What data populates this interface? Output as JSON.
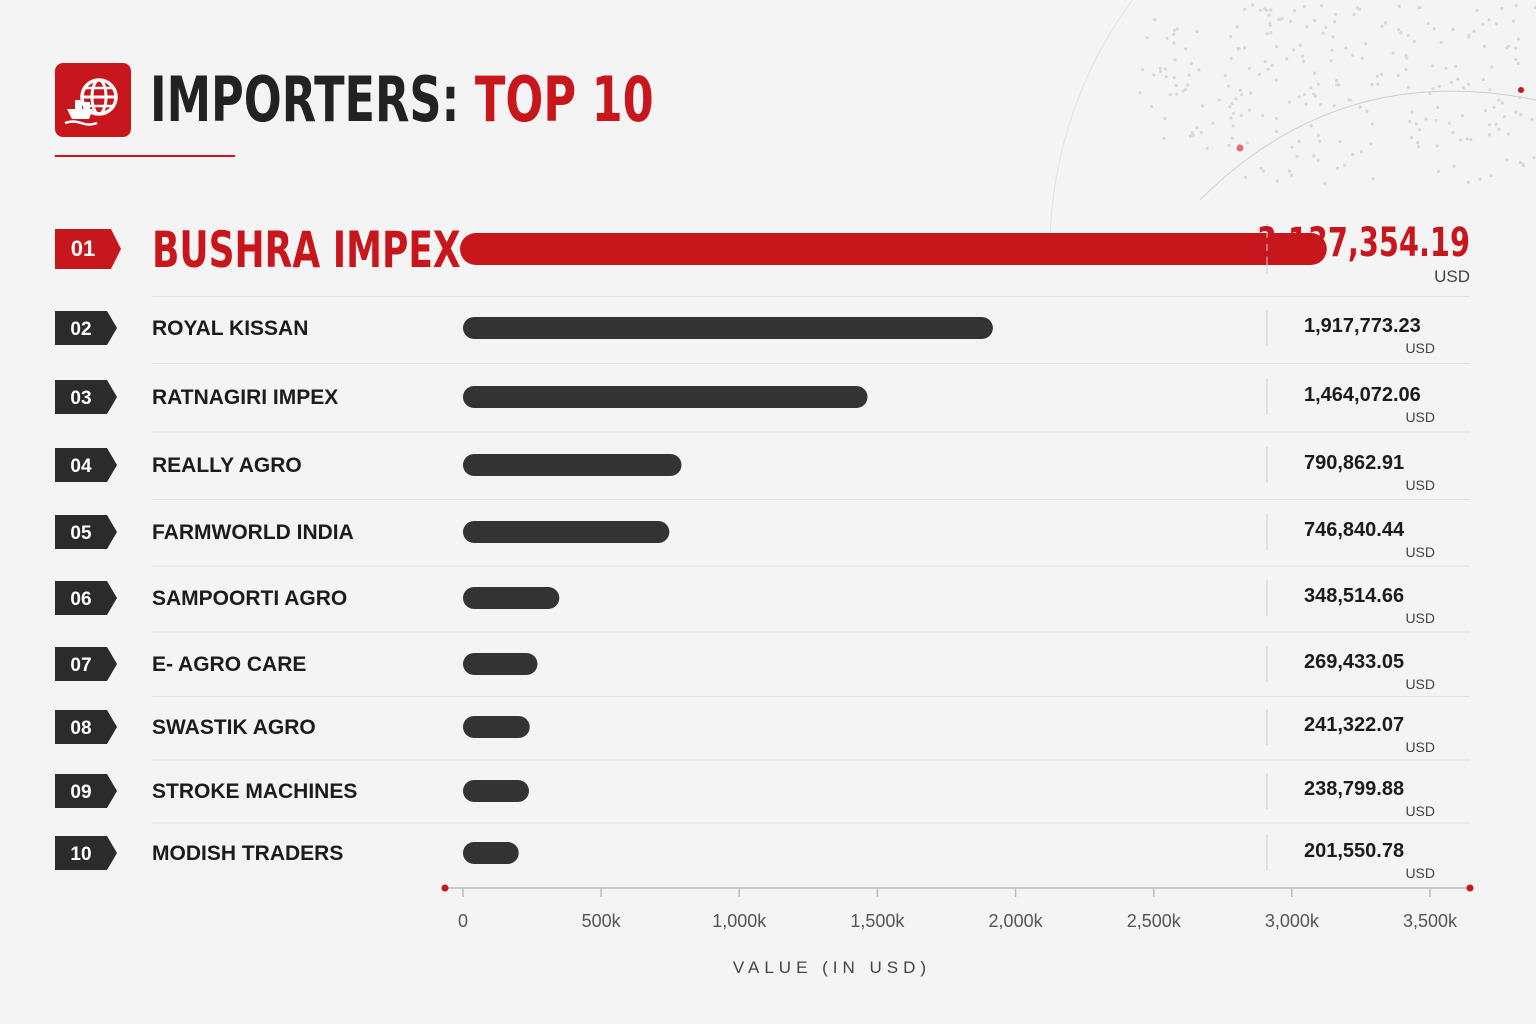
{
  "header": {
    "title_main": "IMPORTERS:",
    "title_accent": "TOP 10",
    "icon": "globe-ship-icon"
  },
  "colors": {
    "accent": "#c8161d",
    "bar_dark": "#333333",
    "rank_badge": "#2b2b2b",
    "background": "#f4f4f4"
  },
  "chart_data": {
    "type": "bar",
    "orientation": "horizontal",
    "unit_label": "USD",
    "xlabel": "VALUE (IN USD)",
    "xlim": [
      0,
      3500000
    ],
    "tick_labels": [
      "0",
      "500k",
      "1,000k",
      "1,500k",
      "2,000k",
      "2,500k",
      "3,000k",
      "3,500k"
    ],
    "tick_values": [
      0,
      500000,
      1000000,
      1500000,
      2000000,
      2500000,
      3000000,
      3500000
    ],
    "ranks": [
      "01",
      "02",
      "03",
      "04",
      "05",
      "06",
      "07",
      "08",
      "09",
      "10"
    ],
    "categories": [
      "BUSHRA IMPEX",
      "ROYAL KISSAN",
      "RATNAGIRI IMPEX",
      "REALLY AGRO",
      "FARMWORLD INDIA",
      "SAMPOORTI AGRO",
      "E- AGRO CARE",
      "SWASTIK AGRO",
      "STROKE MACHINES",
      "MODISH TRADERS"
    ],
    "values": [
      3137354.19,
      1917773.23,
      1464072.06,
      790862.91,
      746840.44,
      348514.66,
      269433.05,
      241322.07,
      238799.88,
      201550.78
    ],
    "value_labels": [
      "3,137,354.19",
      "1,917,773.23",
      "1,464,072.06",
      "790,862.91",
      "746,840.44",
      "348,514.66",
      "269,433.05",
      "241,322.07",
      "238,799.88",
      "201,550.78"
    ],
    "highlight_index": 0
  }
}
